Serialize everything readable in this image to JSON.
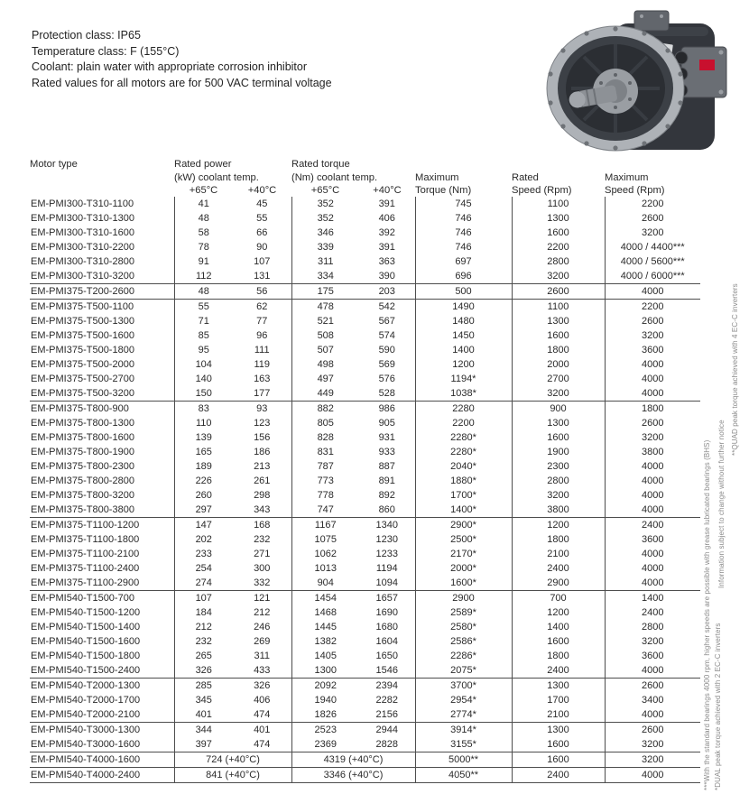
{
  "info_block": {
    "lines": [
      "Protection class: IP65",
      "Temperature class: F (155°C)",
      "Coolant: plain water with appropriate corrosion inhibitor",
      "Rated values for all motors are for 500 VAC terminal voltage"
    ]
  },
  "table": {
    "headers": {
      "motor_type": "Motor type",
      "rated_power_line1": "Rated power",
      "rated_power_line2": "(kW) coolant temp.",
      "rated_torque_line1": "Rated torque",
      "rated_torque_line2": "(Nm) coolant temp.",
      "temp_65": "+65°C",
      "temp_40": "+40°C",
      "max_torque_line1": "Maximum",
      "max_torque_line2": "Torque (Nm)",
      "rated_speed_line1": "Rated",
      "rated_speed_line2": "Speed (Rpm)",
      "max_speed_line1": "Maximum",
      "max_speed_line2": "Speed (Rpm)"
    },
    "groups": [
      {
        "rows": [
          {
            "name": "EM-PMI300-T310-1100",
            "p65": "41",
            "p40": "45",
            "t65": "352",
            "t40": "391",
            "max_torque": "745",
            "rated_speed": "1100",
            "max_speed": "2200"
          },
          {
            "name": "EM-PMI300-T310-1300",
            "p65": "48",
            "p40": "55",
            "t65": "352",
            "t40": "406",
            "max_torque": "746",
            "rated_speed": "1300",
            "max_speed": "2600"
          },
          {
            "name": "EM-PMI300-T310-1600",
            "p65": "58",
            "p40": "66",
            "t65": "346",
            "t40": "392",
            "max_torque": "746",
            "rated_speed": "1600",
            "max_speed": "3200"
          },
          {
            "name": "EM-PMI300-T310-2200",
            "p65": "78",
            "p40": "90",
            "t65": "339",
            "t40": "391",
            "max_torque": "746",
            "rated_speed": "2200",
            "max_speed": "4000 / 4400***"
          },
          {
            "name": "EM-PMI300-T310-2800",
            "p65": "91",
            "p40": "107",
            "t65": "311",
            "t40": "363",
            "max_torque": "697",
            "rated_speed": "2800",
            "max_speed": "4000 / 5600***"
          },
          {
            "name": "EM-PMI300-T310-3200",
            "p65": "112",
            "p40": "131",
            "t65": "334",
            "t40": "390",
            "max_torque": "696",
            "rated_speed": "3200",
            "max_speed": "4000 / 6000***"
          }
        ]
      },
      {
        "rows": [
          {
            "name": "EM-PMI375-T200-2600",
            "p65": "48",
            "p40": "56",
            "t65": "175",
            "t40": "203",
            "max_torque": "500",
            "rated_speed": "2600",
            "max_speed": "4000"
          }
        ]
      },
      {
        "rows": [
          {
            "name": "EM-PMI375-T500-1100",
            "p65": "55",
            "p40": "62",
            "t65": "478",
            "t40": "542",
            "max_torque": "1490",
            "rated_speed": "1100",
            "max_speed": "2200"
          },
          {
            "name": "EM-PMI375-T500-1300",
            "p65": "71",
            "p40": "77",
            "t65": "521",
            "t40": "567",
            "max_torque": "1480",
            "rated_speed": "1300",
            "max_speed": "2600"
          },
          {
            "name": "EM-PMI375-T500-1600",
            "p65": "85",
            "p40": "96",
            "t65": "508",
            "t40": "574",
            "max_torque": "1450",
            "rated_speed": "1600",
            "max_speed": "3200"
          },
          {
            "name": "EM-PMI375-T500-1800",
            "p65": "95",
            "p40": "111",
            "t65": "507",
            "t40": "590",
            "max_torque": "1400",
            "rated_speed": "1800",
            "max_speed": "3600"
          },
          {
            "name": "EM-PMI375-T500-2000",
            "p65": "104",
            "p40": "119",
            "t65": "498",
            "t40": "569",
            "max_torque": "1200",
            "rated_speed": "2000",
            "max_speed": "4000"
          },
          {
            "name": "EM-PMI375-T500-2700",
            "p65": "140",
            "p40": "163",
            "t65": "497",
            "t40": "576",
            "max_torque": "1194*",
            "rated_speed": "2700",
            "max_speed": "4000"
          },
          {
            "name": "EM-PMI375-T500-3200",
            "p65": "150",
            "p40": "177",
            "t65": "449",
            "t40": "528",
            "max_torque": "1038*",
            "rated_speed": "3200",
            "max_speed": "4000"
          }
        ]
      },
      {
        "rows": [
          {
            "name": "EM-PMI375-T800-900",
            "p65": "83",
            "p40": "93",
            "t65": "882",
            "t40": "986",
            "max_torque": "2280",
            "rated_speed": "900",
            "max_speed": "1800"
          },
          {
            "name": "EM-PMI375-T800-1300",
            "p65": "110",
            "p40": "123",
            "t65": "805",
            "t40": "905",
            "max_torque": "2200",
            "rated_speed": "1300",
            "max_speed": "2600"
          },
          {
            "name": "EM-PMI375-T800-1600",
            "p65": "139",
            "p40": "156",
            "t65": "828",
            "t40": "931",
            "max_torque": "2280*",
            "rated_speed": "1600",
            "max_speed": "3200"
          },
          {
            "name": "EM-PMI375-T800-1900",
            "p65": "165",
            "p40": "186",
            "t65": "831",
            "t40": "933",
            "max_torque": "2280*",
            "rated_speed": "1900",
            "max_speed": "3800"
          },
          {
            "name": "EM-PMI375-T800-2300",
            "p65": "189",
            "p40": "213",
            "t65": "787",
            "t40": "887",
            "max_torque": "2040*",
            "rated_speed": "2300",
            "max_speed": "4000"
          },
          {
            "name": "EM-PMI375-T800-2800",
            "p65": "226",
            "p40": "261",
            "t65": "773",
            "t40": "891",
            "max_torque": "1880*",
            "rated_speed": "2800",
            "max_speed": "4000"
          },
          {
            "name": "EM-PMI375-T800-3200",
            "p65": "260",
            "p40": "298",
            "t65": "778",
            "t40": "892",
            "max_torque": "1700*",
            "rated_speed": "3200",
            "max_speed": "4000"
          },
          {
            "name": "EM-PMI375-T800-3800",
            "p65": "297",
            "p40": "343",
            "t65": "747",
            "t40": "860",
            "max_torque": "1400*",
            "rated_speed": "3800",
            "max_speed": "4000"
          }
        ]
      },
      {
        "rows": [
          {
            "name": "EM-PMI375-T1100-1200",
            "p65": "147",
            "p40": "168",
            "t65": "1167",
            "t40": "1340",
            "max_torque": "2900*",
            "rated_speed": "1200",
            "max_speed": "2400"
          },
          {
            "name": "EM-PMI375-T1100-1800",
            "p65": "202",
            "p40": "232",
            "t65": "1075",
            "t40": "1230",
            "max_torque": "2500*",
            "rated_speed": "1800",
            "max_speed": "3600"
          },
          {
            "name": "EM-PMI375-T1100-2100",
            "p65": "233",
            "p40": "271",
            "t65": "1062",
            "t40": "1233",
            "max_torque": "2170*",
            "rated_speed": "2100",
            "max_speed": "4000"
          },
          {
            "name": "EM-PMI375-T1100-2400",
            "p65": "254",
            "p40": "300",
            "t65": "1013",
            "t40": "1194",
            "max_torque": "2000*",
            "rated_speed": "2400",
            "max_speed": "4000"
          },
          {
            "name": "EM-PMI375-T1100-2900",
            "p65": "274",
            "p40": "332",
            "t65": "904",
            "t40": "1094",
            "max_torque": "1600*",
            "rated_speed": "2900",
            "max_speed": "4000"
          }
        ]
      },
      {
        "rows": [
          {
            "name": "EM-PMI540-T1500-700",
            "p65": "107",
            "p40": "121",
            "t65": "1454",
            "t40": "1657",
            "max_torque": "2900",
            "rated_speed": "700",
            "max_speed": "1400"
          },
          {
            "name": "EM-PMI540-T1500-1200",
            "p65": "184",
            "p40": "212",
            "t65": "1468",
            "t40": "1690",
            "max_torque": "2589*",
            "rated_speed": "1200",
            "max_speed": "2400"
          },
          {
            "name": "EM-PMI540-T1500-1400",
            "p65": "212",
            "p40": "246",
            "t65": "1445",
            "t40": "1680",
            "max_torque": "2580*",
            "rated_speed": "1400",
            "max_speed": "2800"
          },
          {
            "name": "EM-PMI540-T1500-1600",
            "p65": "232",
            "p40": "269",
            "t65": "1382",
            "t40": "1604",
            "max_torque": "2586*",
            "rated_speed": "1600",
            "max_speed": "3200"
          },
          {
            "name": "EM-PMI540-T1500-1800",
            "p65": "265",
            "p40": "311",
            "t65": "1405",
            "t40": "1650",
            "max_torque": "2286*",
            "rated_speed": "1800",
            "max_speed": "3600"
          },
          {
            "name": "EM-PMI540-T1500-2400",
            "p65": "326",
            "p40": "433",
            "t65": "1300",
            "t40": "1546",
            "max_torque": "2075*",
            "rated_speed": "2400",
            "max_speed": "4000"
          }
        ]
      },
      {
        "rows": [
          {
            "name": "EM-PMI540-T2000-1300",
            "p65": "285",
            "p40": "326",
            "t65": "2092",
            "t40": "2394",
            "max_torque": "3700*",
            "rated_speed": "1300",
            "max_speed": "2600"
          },
          {
            "name": "EM-PMI540-T2000-1700",
            "p65": "345",
            "p40": "406",
            "t65": "1940",
            "t40": "2282",
            "max_torque": "2954*",
            "rated_speed": "1700",
            "max_speed": "3400"
          },
          {
            "name": "EM-PMI540-T2000-2100",
            "p65": "401",
            "p40": "474",
            "t65": "1826",
            "t40": "2156",
            "max_torque": "2774*",
            "rated_speed": "2100",
            "max_speed": "4000"
          }
        ]
      },
      {
        "rows": [
          {
            "name": "EM-PMI540-T3000-1300",
            "p65": "344",
            "p40": "401",
            "t65": "2523",
            "t40": "2944",
            "max_torque": "3914*",
            "rated_speed": "1300",
            "max_speed": "2600"
          },
          {
            "name": "EM-PMI540-T3000-1600",
            "p65": "397",
            "p40": "474",
            "t65": "2369",
            "t40": "2828",
            "max_torque": "3155*",
            "rated_speed": "1600",
            "max_speed": "3200"
          }
        ]
      },
      {
        "rows": [
          {
            "name": "EM-PMI540-T4000-1600",
            "power": "724 (+40°C)",
            "torque": "4319 (+40°C)",
            "max_torque": "5000**",
            "rated_speed": "1600",
            "max_speed": "3200"
          }
        ]
      },
      {
        "rows": [
          {
            "name": "EM-PMI540-T4000-2400",
            "power": "841 (+40°C)",
            "torque": "3346 (+40°C)",
            "max_torque": "4050**",
            "rated_speed": "2400",
            "max_speed": "4000"
          }
        ]
      }
    ]
  },
  "footnotes": {
    "quad": "**QUAD peak torque achieved with 4 EC-C inverters",
    "info_change": "Information subject to change without further notice",
    "bearings": "***With the standard bearings 4000 rpm, higher speeds are possible with grease lubricated bearings (BHS)",
    "dual": "*DUAL peak torque achieved with 2 EC-C inverters"
  },
  "motor_image": {
    "description": "electric PM motor photo",
    "red_accent": "#c8102e"
  }
}
